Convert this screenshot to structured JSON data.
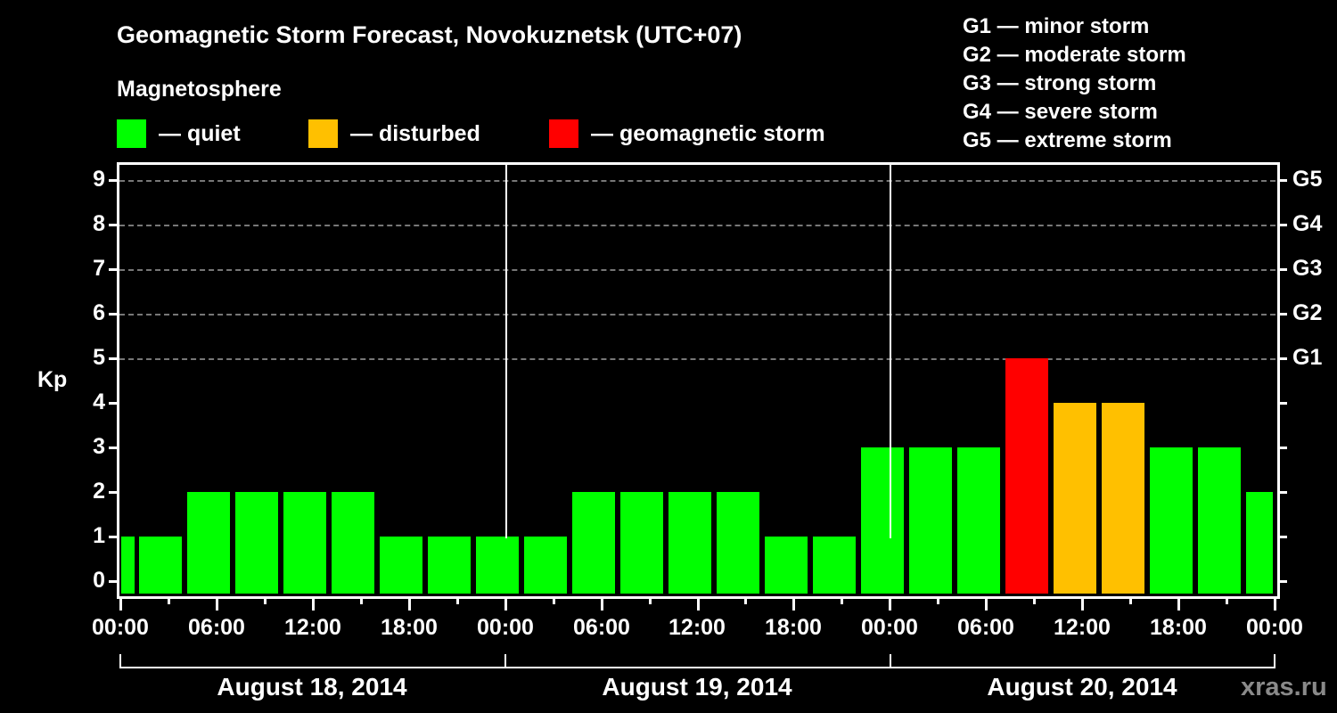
{
  "header": {
    "title": "Geomagnetic Storm Forecast, Novokuznetsk (UTC+07)",
    "subtitle": "Magnetosphere",
    "legend": [
      {
        "label": "— quiet",
        "color": "#00ff00"
      },
      {
        "label": "— disturbed",
        "color": "#ffc000"
      },
      {
        "label": "— geomagnetic storm",
        "color": "#ff0000"
      }
    ],
    "storm_scale": [
      "G1 — minor storm",
      "G2 — moderate storm",
      "G3 — strong storm",
      "G4 — severe storm",
      "G5 — extreme storm"
    ]
  },
  "axes": {
    "ylabel": "Kp",
    "yticks": [
      "0",
      "1",
      "2",
      "3",
      "4",
      "5",
      "6",
      "7",
      "8",
      "9"
    ],
    "gticks": [
      {
        "label": "G1",
        "kp": 5
      },
      {
        "label": "G2",
        "kp": 6
      },
      {
        "label": "G3",
        "kp": 7
      },
      {
        "label": "G4",
        "kp": 8
      },
      {
        "label": "G5",
        "kp": 9
      }
    ],
    "xticks": [
      "00:00",
      "06:00",
      "12:00",
      "18:00",
      "00:00",
      "06:00",
      "12:00",
      "18:00",
      "00:00",
      "06:00",
      "12:00",
      "18:00",
      "00:00"
    ],
    "dates": [
      "August 18, 2014",
      "August 19, 2014",
      "August 20, 2014"
    ]
  },
  "watermark": "xras.ru",
  "colors": {
    "quiet": "#00ff00",
    "disturbed": "#ffc000",
    "storm": "#ff0000"
  },
  "chart_data": {
    "type": "bar",
    "title": "Geomagnetic Storm Forecast, Novokuznetsk (UTC+07)",
    "xlabel": "",
    "ylabel": "Kp",
    "ylim": [
      0,
      9
    ],
    "grid": "horizontal dashed at Kp 5-9",
    "legend_position": "top",
    "secondary_y_labels": {
      "5": "G1",
      "6": "G2",
      "7": "G3",
      "8": "G4",
      "9": "G5"
    },
    "categories": [
      "Aug 18 00:00",
      "Aug 18 01:30",
      "Aug 18 04:30",
      "Aug 18 07:30",
      "Aug 18 10:30",
      "Aug 18 13:30",
      "Aug 18 16:30",
      "Aug 18 19:30",
      "Aug 18 22:30",
      "Aug 19 01:30",
      "Aug 19 04:30",
      "Aug 19 07:30",
      "Aug 19 10:30",
      "Aug 19 13:30",
      "Aug 19 16:30",
      "Aug 19 19:30",
      "Aug 19 22:30",
      "Aug 20 01:30",
      "Aug 20 04:30",
      "Aug 20 07:30",
      "Aug 20 10:30",
      "Aug 20 13:30",
      "Aug 20 16:30",
      "Aug 20 19:30",
      "Aug 20 22:30"
    ],
    "values": [
      1,
      1,
      2,
      2,
      2,
      2,
      1,
      1,
      1,
      1,
      2,
      2,
      2,
      2,
      1,
      1,
      3,
      3,
      3,
      5,
      4,
      4,
      3,
      3,
      2
    ],
    "levels": [
      "quiet",
      "quiet",
      "quiet",
      "quiet",
      "quiet",
      "quiet",
      "quiet",
      "quiet",
      "quiet",
      "quiet",
      "quiet",
      "quiet",
      "quiet",
      "quiet",
      "quiet",
      "quiet",
      "quiet",
      "quiet",
      "quiet",
      "storm",
      "disturbed",
      "disturbed",
      "quiet",
      "quiet",
      "quiet"
    ]
  }
}
